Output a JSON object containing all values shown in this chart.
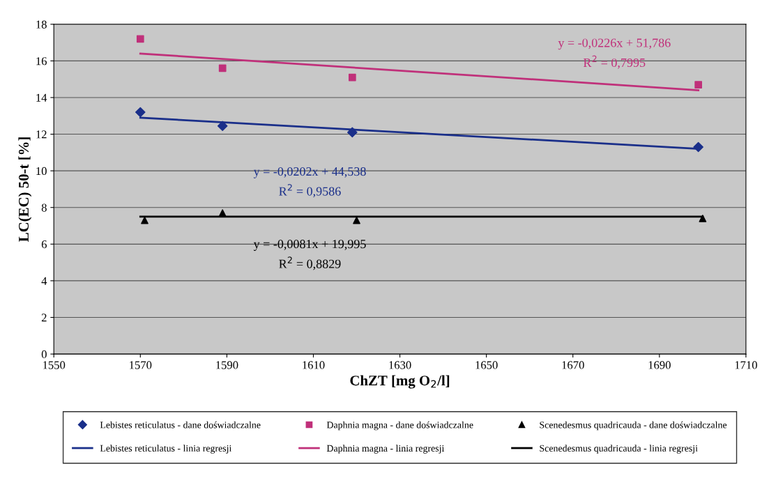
{
  "chart_data": {
    "type": "scatter",
    "xlabel": "ChZT [mg O$_{2}$/l]",
    "ylabel": "LC(EC) 50-t [%]",
    "xlim": [
      1550,
      1710
    ],
    "xticks": [
      1550,
      1570,
      1590,
      1610,
      1630,
      1650,
      1670,
      1690,
      1710
    ],
    "ylim": [
      0,
      18
    ],
    "yticks": [
      0,
      2,
      4,
      6,
      8,
      10,
      12,
      14,
      16,
      18
    ],
    "grid": "y",
    "legend": "bottom",
    "series": [
      {
        "name": "Lebistes reticulatus - dane doświadczalne",
        "marker": "diamond",
        "color": "#1a2f8a",
        "x": [
          1570,
          1589,
          1619,
          1699
        ],
        "values": [
          13.2,
          12.45,
          12.1,
          11.3
        ]
      },
      {
        "name": "Lebistes reticulatus - linia regresji",
        "type": "line",
        "marker": "none",
        "color": "#1a2f8a",
        "x": [
          1570,
          1699
        ],
        "values": [
          12.9,
          11.2
        ]
      },
      {
        "name": "Daphnia magna - dane doświadczalne",
        "marker": "square",
        "color": "#c0307a",
        "x": [
          1570,
          1589,
          1619,
          1699
        ],
        "values": [
          17.2,
          15.6,
          15.1,
          14.7
        ]
      },
      {
        "name": "Daphnia magna - linia regresji",
        "type": "line",
        "marker": "none",
        "color": "#c0307a",
        "x": [
          1570,
          1699
        ],
        "values": [
          16.4,
          14.4
        ]
      },
      {
        "name": "Scenedesmus quadricauda - dane doświadczalne",
        "marker": "triangle",
        "color": "#000000",
        "x": [
          1571,
          1589,
          1620,
          1700
        ],
        "values": [
          7.3,
          7.7,
          7.3,
          7.4
        ]
      },
      {
        "name": "Scenedesmus quadricauda - linia regresji",
        "type": "line",
        "marker": "none",
        "color": "#000000",
        "x": [
          1570,
          1700
        ],
        "values": [
          7.5,
          7.5
        ]
      }
    ],
    "annotations": [
      "y = -0,0226x + 51,786\nR$^{2}$ = 0,7995",
      "y = -0,0202x + 44,538\nR$^{2}$ = 0,9586",
      "y = -0,0081x + 19,995\nR$^{2}$ = 0,8829"
    ]
  }
}
